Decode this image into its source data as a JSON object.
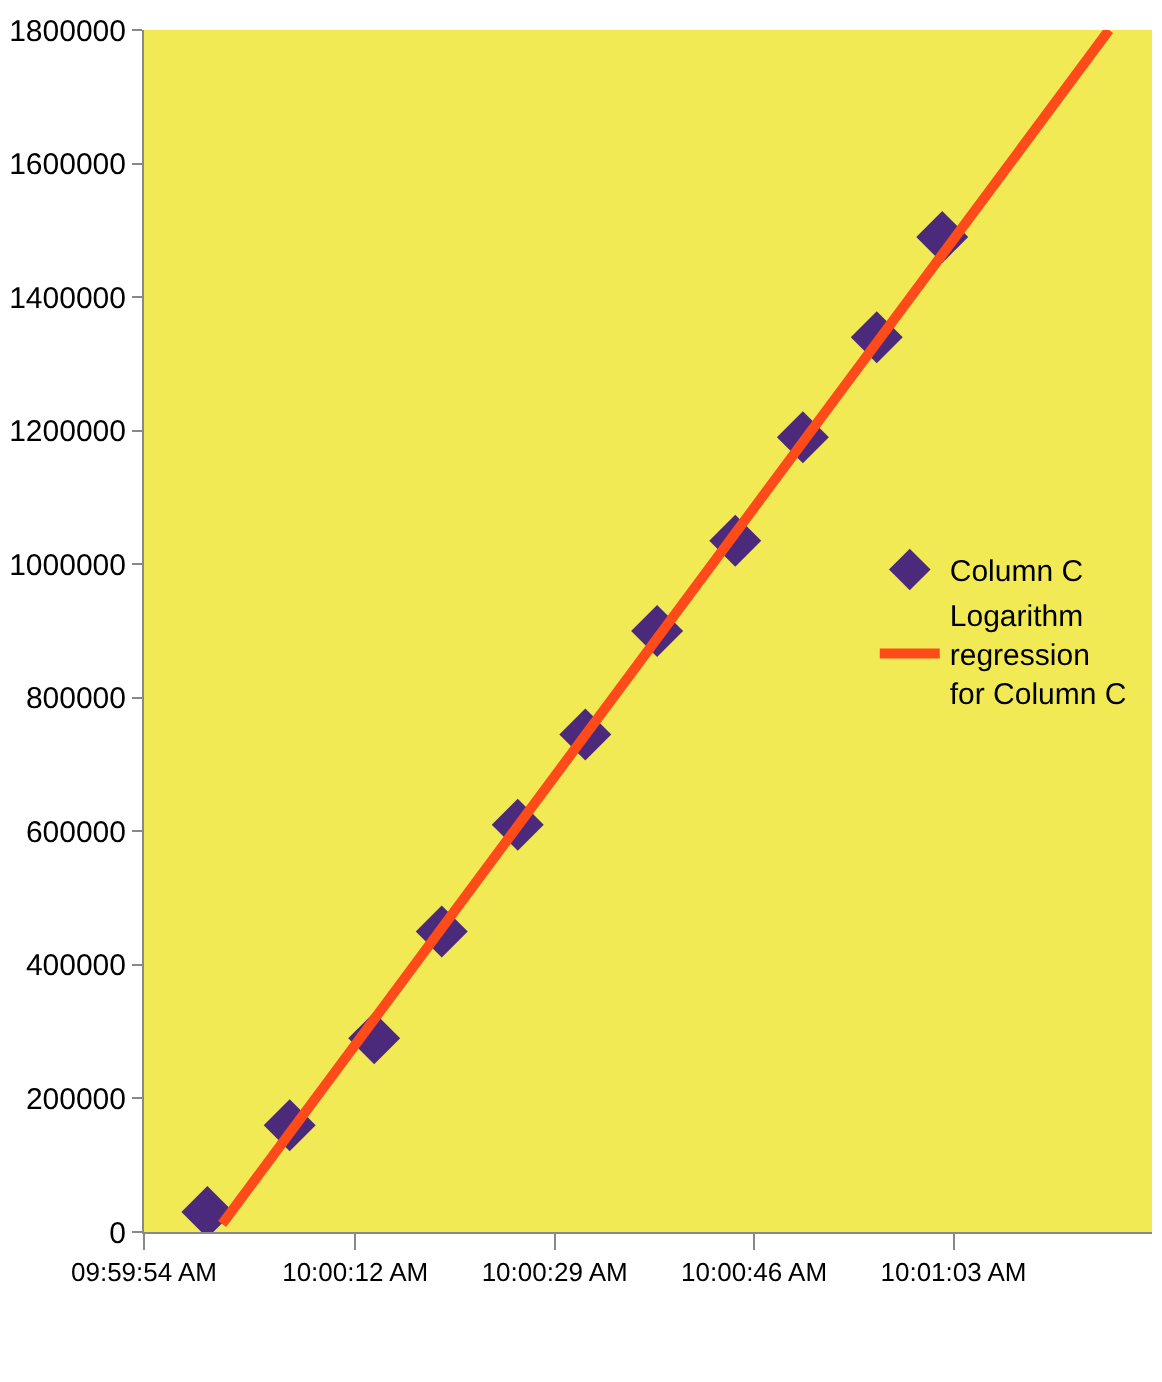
{
  "chart_data": {
    "type": "scatter",
    "x": [
      9.999833,
      10.001783,
      10.003783,
      10.005383,
      10.007183,
      10.008783,
      10.010483,
      10.012333,
      10.013933,
      10.015683,
      10.017233
    ],
    "series": [
      {
        "name": "Column C",
        "color": "#4b2a7b",
        "marker": "diamond",
        "values": [
          30000,
          160000,
          290000,
          450000,
          610000,
          745000,
          900000,
          1035000,
          1190000,
          1340000,
          1490000
        ]
      },
      {
        "name": "Logarithm regression for Column C",
        "color": "#ff4a1a",
        "type": "line",
        "marker": "none",
        "x": [
          10.000183,
          10.021183
        ],
        "values": [
          12000,
          1800000
        ]
      }
    ],
    "xlim": [
      9.998333,
      10.0222
    ],
    "xticks": [
      {
        "value": 9.998333,
        "label": "09:59:54 AM"
      },
      {
        "value": 10.003333,
        "label": "10:00:12 AM"
      },
      {
        "value": 10.008056,
        "label": "10:00:29 AM"
      },
      {
        "value": 10.012778,
        "label": "10:00:46 AM"
      },
      {
        "value": 10.0175,
        "label": "10:01:03 AM"
      }
    ],
    "ylim": [
      0,
      1800000
    ],
    "yticks": [
      0,
      200000,
      400000,
      600000,
      800000,
      1000000,
      1200000,
      1400000,
      1600000,
      1800000
    ],
    "grid": false,
    "legend": "right"
  }
}
